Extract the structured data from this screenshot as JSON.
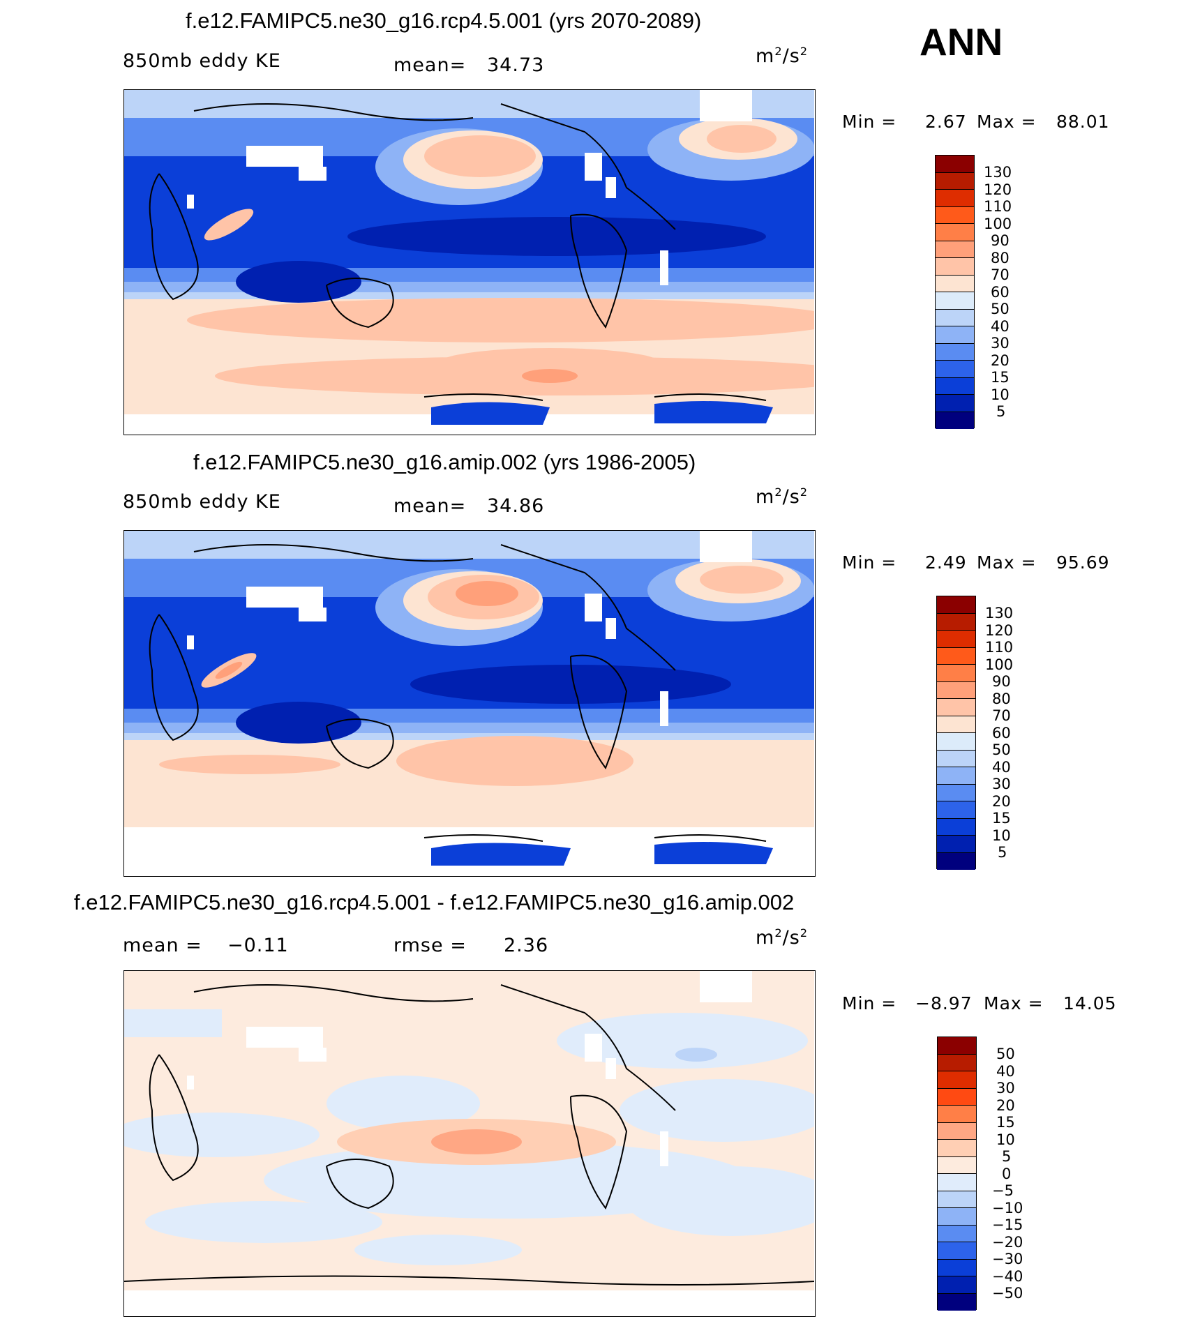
{
  "season": "ANN",
  "units_base": "m",
  "units_exp": "2",
  "units_div": "/s",
  "chart_data": [
    {
      "type": "heatmap",
      "title": "f.e12.FAMIPC5.ne30_g16.rcp4.5.001 (yrs 2070-2089)",
      "left_label": "850mb eddy KE",
      "stat1_label": "mean=",
      "stat1_value": "34.73",
      "min_label": "Min =",
      "min_value": "2.67",
      "max_label": "Max =",
      "max_value": "88.01",
      "levels": [
        "130",
        "120",
        "110",
        "100",
        "90",
        "80",
        "70",
        "60",
        "50",
        "40",
        "30",
        "20",
        "15",
        "10",
        "5"
      ],
      "colors": [
        "#8b0000",
        "#b71c00",
        "#de2d00",
        "#ff5a1a",
        "#ff7f47",
        "#ffa07a",
        "#ffc4a8",
        "#fde4d2",
        "#dcebfa",
        "#bcd4f8",
        "#8eb3f6",
        "#5a8cf2",
        "#2d63ea",
        "#0b3fd8",
        "#0020b0",
        "#00007e"
      ]
    },
    {
      "type": "heatmap",
      "title": "f.e12.FAMIPC5.ne30_g16.amip.002 (yrs 1986-2005)",
      "left_label": "850mb eddy KE",
      "stat1_label": "mean=",
      "stat1_value": "34.86",
      "min_label": "Min =",
      "min_value": "2.49",
      "max_label": "Max =",
      "max_value": "95.69",
      "levels": [
        "130",
        "120",
        "110",
        "100",
        "90",
        "80",
        "70",
        "60",
        "50",
        "40",
        "30",
        "20",
        "15",
        "10",
        "5"
      ],
      "colors": [
        "#8b0000",
        "#b71c00",
        "#de2d00",
        "#ff5a1a",
        "#ff7f47",
        "#ffa07a",
        "#ffc4a8",
        "#fde4d2",
        "#dcebfa",
        "#bcd4f8",
        "#8eb3f6",
        "#5a8cf2",
        "#2d63ea",
        "#0b3fd8",
        "#0020b0",
        "#00007e"
      ]
    },
    {
      "type": "heatmap",
      "title": "f.e12.FAMIPC5.ne30_g16.rcp4.5.001 - f.e12.FAMIPC5.ne30_g16.amip.002",
      "left_label": "mean =",
      "left_value": "−0.11",
      "stat1_label": "rmse =",
      "stat1_value": "2.36",
      "min_label": "Min =",
      "min_value": "−8.97",
      "max_label": "Max =",
      "max_value": "14.05",
      "levels": [
        "50",
        "40",
        "30",
        "20",
        "15",
        "10",
        "5",
        "0",
        "−5",
        "−10",
        "−15",
        "−20",
        "−30",
        "−40",
        "−50"
      ],
      "colors": [
        "#8b0000",
        "#b71c00",
        "#de2d00",
        "#ff4a12",
        "#ff7f47",
        "#ffa784",
        "#ffcfb4",
        "#fdebde",
        "#e0ecfb",
        "#bcd4f8",
        "#8eb3f6",
        "#5a8cf2",
        "#2d63ea",
        "#0b3fd8",
        "#0020b0",
        "#00007e"
      ]
    }
  ]
}
